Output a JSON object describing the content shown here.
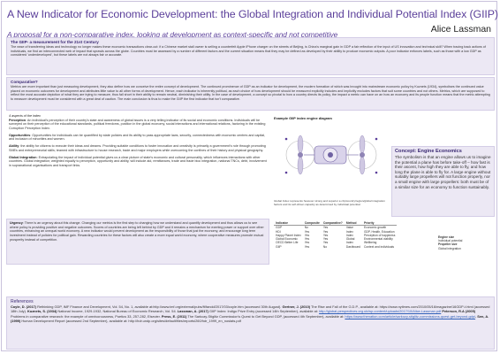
{
  "title": "A New Indicator for Economic Development: the Global Integration and Individual Potential Index (GIIP)",
  "subtitle": "A proposal for a non-comparative index, looking at development as context-specific and not competitive",
  "author": "Alice Lassman",
  "section1": {
    "heading": "The GIIP- a measurement for the 21st Century",
    "body": "The ease of transferring ideas and technology no longer makes these economic transactions clear-cut: if a Chinese market stall owner is selling a counterfeit Apple iPhone charger on the streets of Beijing, is China's marginal gain in GDP a fair reflection of the input of US innovation and technical skill? When tracing back actions of individuals, we find an interconnected web of impact that sprawls across the globe. Countries must be assessed by a number of different factors and the current situation means that they may be defined as developed by their ability to produce economic outputs. A poor indicator enforces labels, such as those with a low GDP as considered 'underdeveloped', but these labels are not always fair or accurate."
  },
  "section2": {
    "heading": "Comparative?",
    "body": "Metrics are more important than just measuring development, they also define how we conceive the entire concept of development. The continued prominence of GDP as an indicator for development, the modern formation of which was brought into mainstream economic policy by Kuznets (1934), symbolises the continued value placed on economic outcomes for development and attributes little value to all other forms of development. Hence, each indicator is inherently political, as each choice of how development should be measured explicitly includes and implicitly excludes factors that suit some countries and not others. Metrics, which are supposed to reflect the most accurate depiction of what they are trying to measure, thus fall short in their ability to remain neutral, diminishing their utility. In the case of development, a concept so pivotal to how a country directs its policy, the impact a metric can have on an how an economy and its people function means that the metric attempting to measure development must be considered with a great deal of caution. The main conclusion is thus to make the GIIP the first indicator that isn't comparative."
  },
  "aspects": {
    "lead": "4 aspects of the index",
    "items": [
      {
        "term": "Perception",
        "text": "An individual's perception of their country's state and awareness of global issues is a very telling indicator of its social and economic conditions. Individuals will be surveyed on their perception of the educational standards, political freedoms, position in the global economy, social interactions and international relations, factoring in the existing Corruption Perception Index."
      },
      {
        "term": "Opportunities",
        "text": "Opportunities for individuals can be quantified by state policies and its ability to pass appropriate laws, security, connectedness with economic centres and capital, and inclusion of minorities and women."
      },
      {
        "term": "Ability",
        "text": "the ability for citizens to execute their ideas and dreams. Providing suitable conditions to foster innovation and creativity is primarily a government's role through promoting SMEs and entrepreneurial skills; teamed with infrastructure to house research, trade and major employers while overcoming the confines of their history and physical geography."
      },
      {
        "term": "Global Integration",
        "text": "Extrapolating the impact of individual potential gives us a clear picture of state's economic and cultural personality, which influences interactions with other countries. Global integration; weighted equally to perception, opportunity and ability, will include aid, remittances, trade and trade bloc integration, national TNCs, debt, involvement in supranational organisations and transport links."
      }
    ]
  },
  "diagram": {
    "title": "Example GIIP index engine diagram",
    "caption": "Global Index represents however strong and superior a city/country/region/global integration factors and its self-driven capacity as determined by individual potential."
  },
  "concept": {
    "title": "Concept: Engine Economics",
    "body": "The symbolism is that an engine allows us to imagine the potential a plane has before take-off – how fast is their ascent, how high they are able to fly, and how long the plane is able to fly for. A large engine without suitably large propellers will not function properly, nor a small engine with large propellers: both must be of a similar size for an economy to function sustainably."
  },
  "urgency": {
    "term": "Urgency",
    "text": "There is an urgency about this change. Changing our metrics is the first step to changing how we understand and quantify development and thus allows us to see where policy is providing positive and negative outcomes. Scores of countries are being left behind by GDP and it remains a mechanism for exerting power or support over other countries, enhancing an unequal world economy. A new indicator would prevent development as the responsibility of those that just the economy, and encourage long term investment instead of policies for political gain. Rewarding countries for these factors will also create a more equal world economy, where cooperative measures promote mutual prosperity instead of competition."
  },
  "table": {
    "headers": [
      "Indicator",
      "Composite",
      "Comparative?",
      "Method",
      "Priority"
    ],
    "rows": [
      [
        "GDP",
        "No",
        "Yes",
        "Value",
        "Economic growth"
      ],
      [
        "HDI",
        "Yes",
        "Yes",
        "Index",
        "GDP, Health, Education"
      ],
      [
        "Happy Planet Index",
        "Yes",
        "Yes",
        "Index",
        "Perception of happiness"
      ],
      [
        "Global Economic",
        "Yes",
        "Yes",
        "Global",
        "Environmental viability"
      ],
      [
        "OECD Better Life",
        "Yes",
        "Yes",
        "Index",
        "Wellbeing"
      ],
      [
        "GIIP",
        "Yes",
        "No",
        "Dashboard",
        "Context and individuals"
      ]
    ]
  },
  "side_note": {
    "label": "Engine size",
    "text": "Individual potential",
    "label2": "Propeller size",
    "text2": "Global integration"
  },
  "references": {
    "title": "References",
    "text_parts": [
      {
        "bold": "Coyle, D. (2017)",
        "text": " Rethinking GDP, IMF Finance and Development, Vol. 54, No. 1, available at:http://www.imf.org/external/pubs/ft/fandd/2017/03/coyle.htm (accessed 30th August). "
      },
      {
        "bold": "Gertner, J. (2010)",
        "text": " The Rise and Fall of the G.D.P., available at: https://www.nytimes.com/2010/05/16/magazine/16GDP-t.html (accessed 18th July). "
      },
      {
        "bold": "Kuznets, S. (1934)",
        "text": " National Income, 1929-1932, National Bureau of Economic Research, Vol. 54. "
      },
      {
        "bold": "Lassman, A. (2017)",
        "text": " GIIP Index: Indigo Prize Entry (accessed 14th September), available at: "
      },
      {
        "link": "http://global-perspectives.org.uk/wp-content/uploads/2017/10/Alice-Lassman.pdf"
      },
      {
        "bold": " Peterson, R.A (2005)",
        "text": " Problems in comparative research: the example of omnivorousness, Poetics 33, 257-282, Elsevier. "
      },
      {
        "bold": "Press, E. (2011)",
        "text": " The Sarkozy-Stiglitz Commission's Quest to Get Beyond GDP, (accessed 4th September), available at: "
      },
      {
        "link": "https://www.thenation.com/article/sarkozy-stiglitz-commissions-quest-get-beyond-gdp/"
      },
      {
        "bold": ". Sen, A. (1999)",
        "text": " Human Development Report (accessed 2nd September), available at: http://hdr.undp.org/sites/default/files/reports/260/hdr_1999_en_nostats.pdf"
      }
    ]
  },
  "colors": {
    "accent": "#5b3f9a",
    "panel": "#ece8f4",
    "link": "#2f5fb8"
  }
}
